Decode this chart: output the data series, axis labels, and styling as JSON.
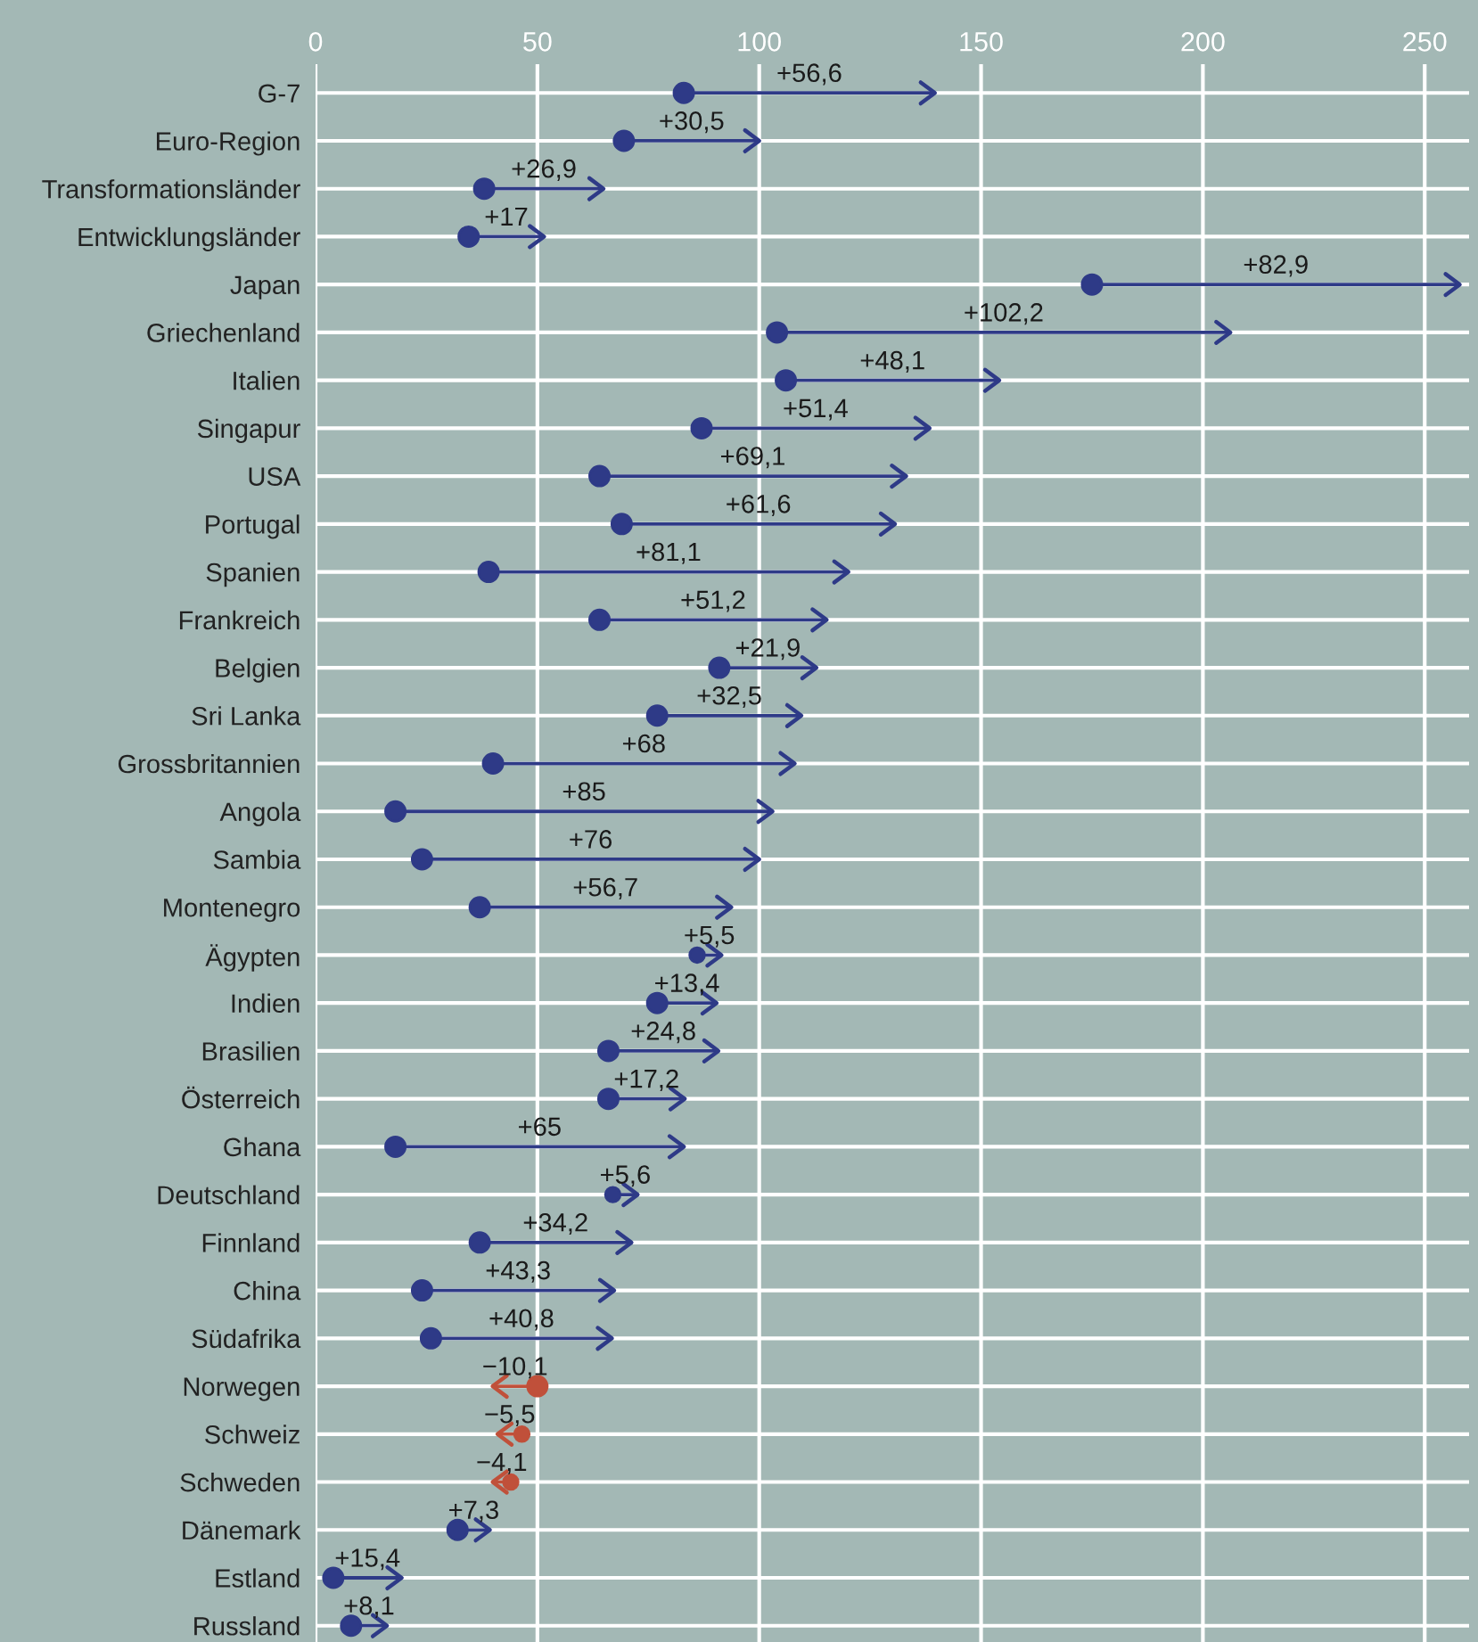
{
  "chart_data": {
    "type": "bar",
    "orientation": "horizontal",
    "categories": [
      "G-7",
      "Euro-Region",
      "Transformationsländer",
      "Entwicklungsländer",
      "Japan",
      "Griechenland",
      "Italien",
      "Singapur",
      "USA",
      "Portugal",
      "Spanien",
      "Frankreich",
      "Belgien",
      "Sri Lanka",
      "Grossbritannien",
      "Angola",
      "Sambia",
      "Montenegro",
      "Ägypten",
      "Indien",
      "Brasilien",
      "Österreich",
      "Ghana",
      "Deutschland",
      "Finnland",
      "China",
      "Südafrika",
      "Norwegen",
      "Schweiz",
      "Schweden",
      "Dänemark",
      "Estland",
      "Russland"
    ],
    "base": [
      83,
      69.5,
      38,
      34.5,
      175,
      104,
      106,
      87,
      64,
      69,
      39,
      64,
      91,
      77,
      40,
      18,
      24,
      37,
      86,
      77,
      66,
      66,
      18,
      67,
      37,
      24,
      26,
      50,
      46.5,
      44,
      32,
      4,
      8
    ],
    "values": [
      56.6,
      30.5,
      26.9,
      17,
      82.9,
      102.2,
      48.1,
      51.4,
      69.1,
      61.6,
      81.1,
      51.2,
      21.9,
      32.5,
      68,
      85,
      76,
      56.7,
      5.5,
      13.4,
      24.8,
      17.2,
      65,
      5.6,
      34.2,
      43.3,
      40.8,
      -10.1,
      -5.5,
      -4.1,
      7.3,
      15.4,
      8.1
    ],
    "value_labels": [
      "+56,6",
      "+30,5",
      "+26,9",
      "+17",
      "+82,9",
      "+102,2",
      "+48,1",
      "+51,4",
      "+69,1",
      "+61,6",
      "+81,1",
      "+51,2",
      "+21,9",
      "+32,5",
      "+68",
      "+85",
      "+76",
      "+56,7",
      "+5,5",
      "+13,4",
      "+24,8",
      "+17,2",
      "+65",
      "+5,6",
      "+34,2",
      "+43,3",
      "+40,8",
      "−10,1",
      "−5,5",
      "−4,1",
      "+7,3",
      "+15,4",
      "+8,1"
    ],
    "colors": [
      "#2e3a87",
      "#2e3a87",
      "#2e3a87",
      "#2e3a87",
      "#2e3a87",
      "#2e3a87",
      "#2e3a87",
      "#2e3a87",
      "#2e3a87",
      "#2e3a87",
      "#2e3a87",
      "#2e3a87",
      "#2e3a87",
      "#2e3a87",
      "#2e3a87",
      "#2e3a87",
      "#2e3a87",
      "#2e3a87",
      "#2e3a87",
      "#2e3a87",
      "#2e3a87",
      "#2e3a87",
      "#2e3a87",
      "#2e3a87",
      "#2e3a87",
      "#2e3a87",
      "#2e3a87",
      "#c0503a",
      "#c0503a",
      "#c0503a",
      "#2e3a87",
      "#2e3a87",
      "#2e3a87"
    ],
    "xlim": [
      0,
      260
    ],
    "xticks": [
      0,
      50,
      100,
      150,
      200,
      250
    ],
    "grid": true
  }
}
